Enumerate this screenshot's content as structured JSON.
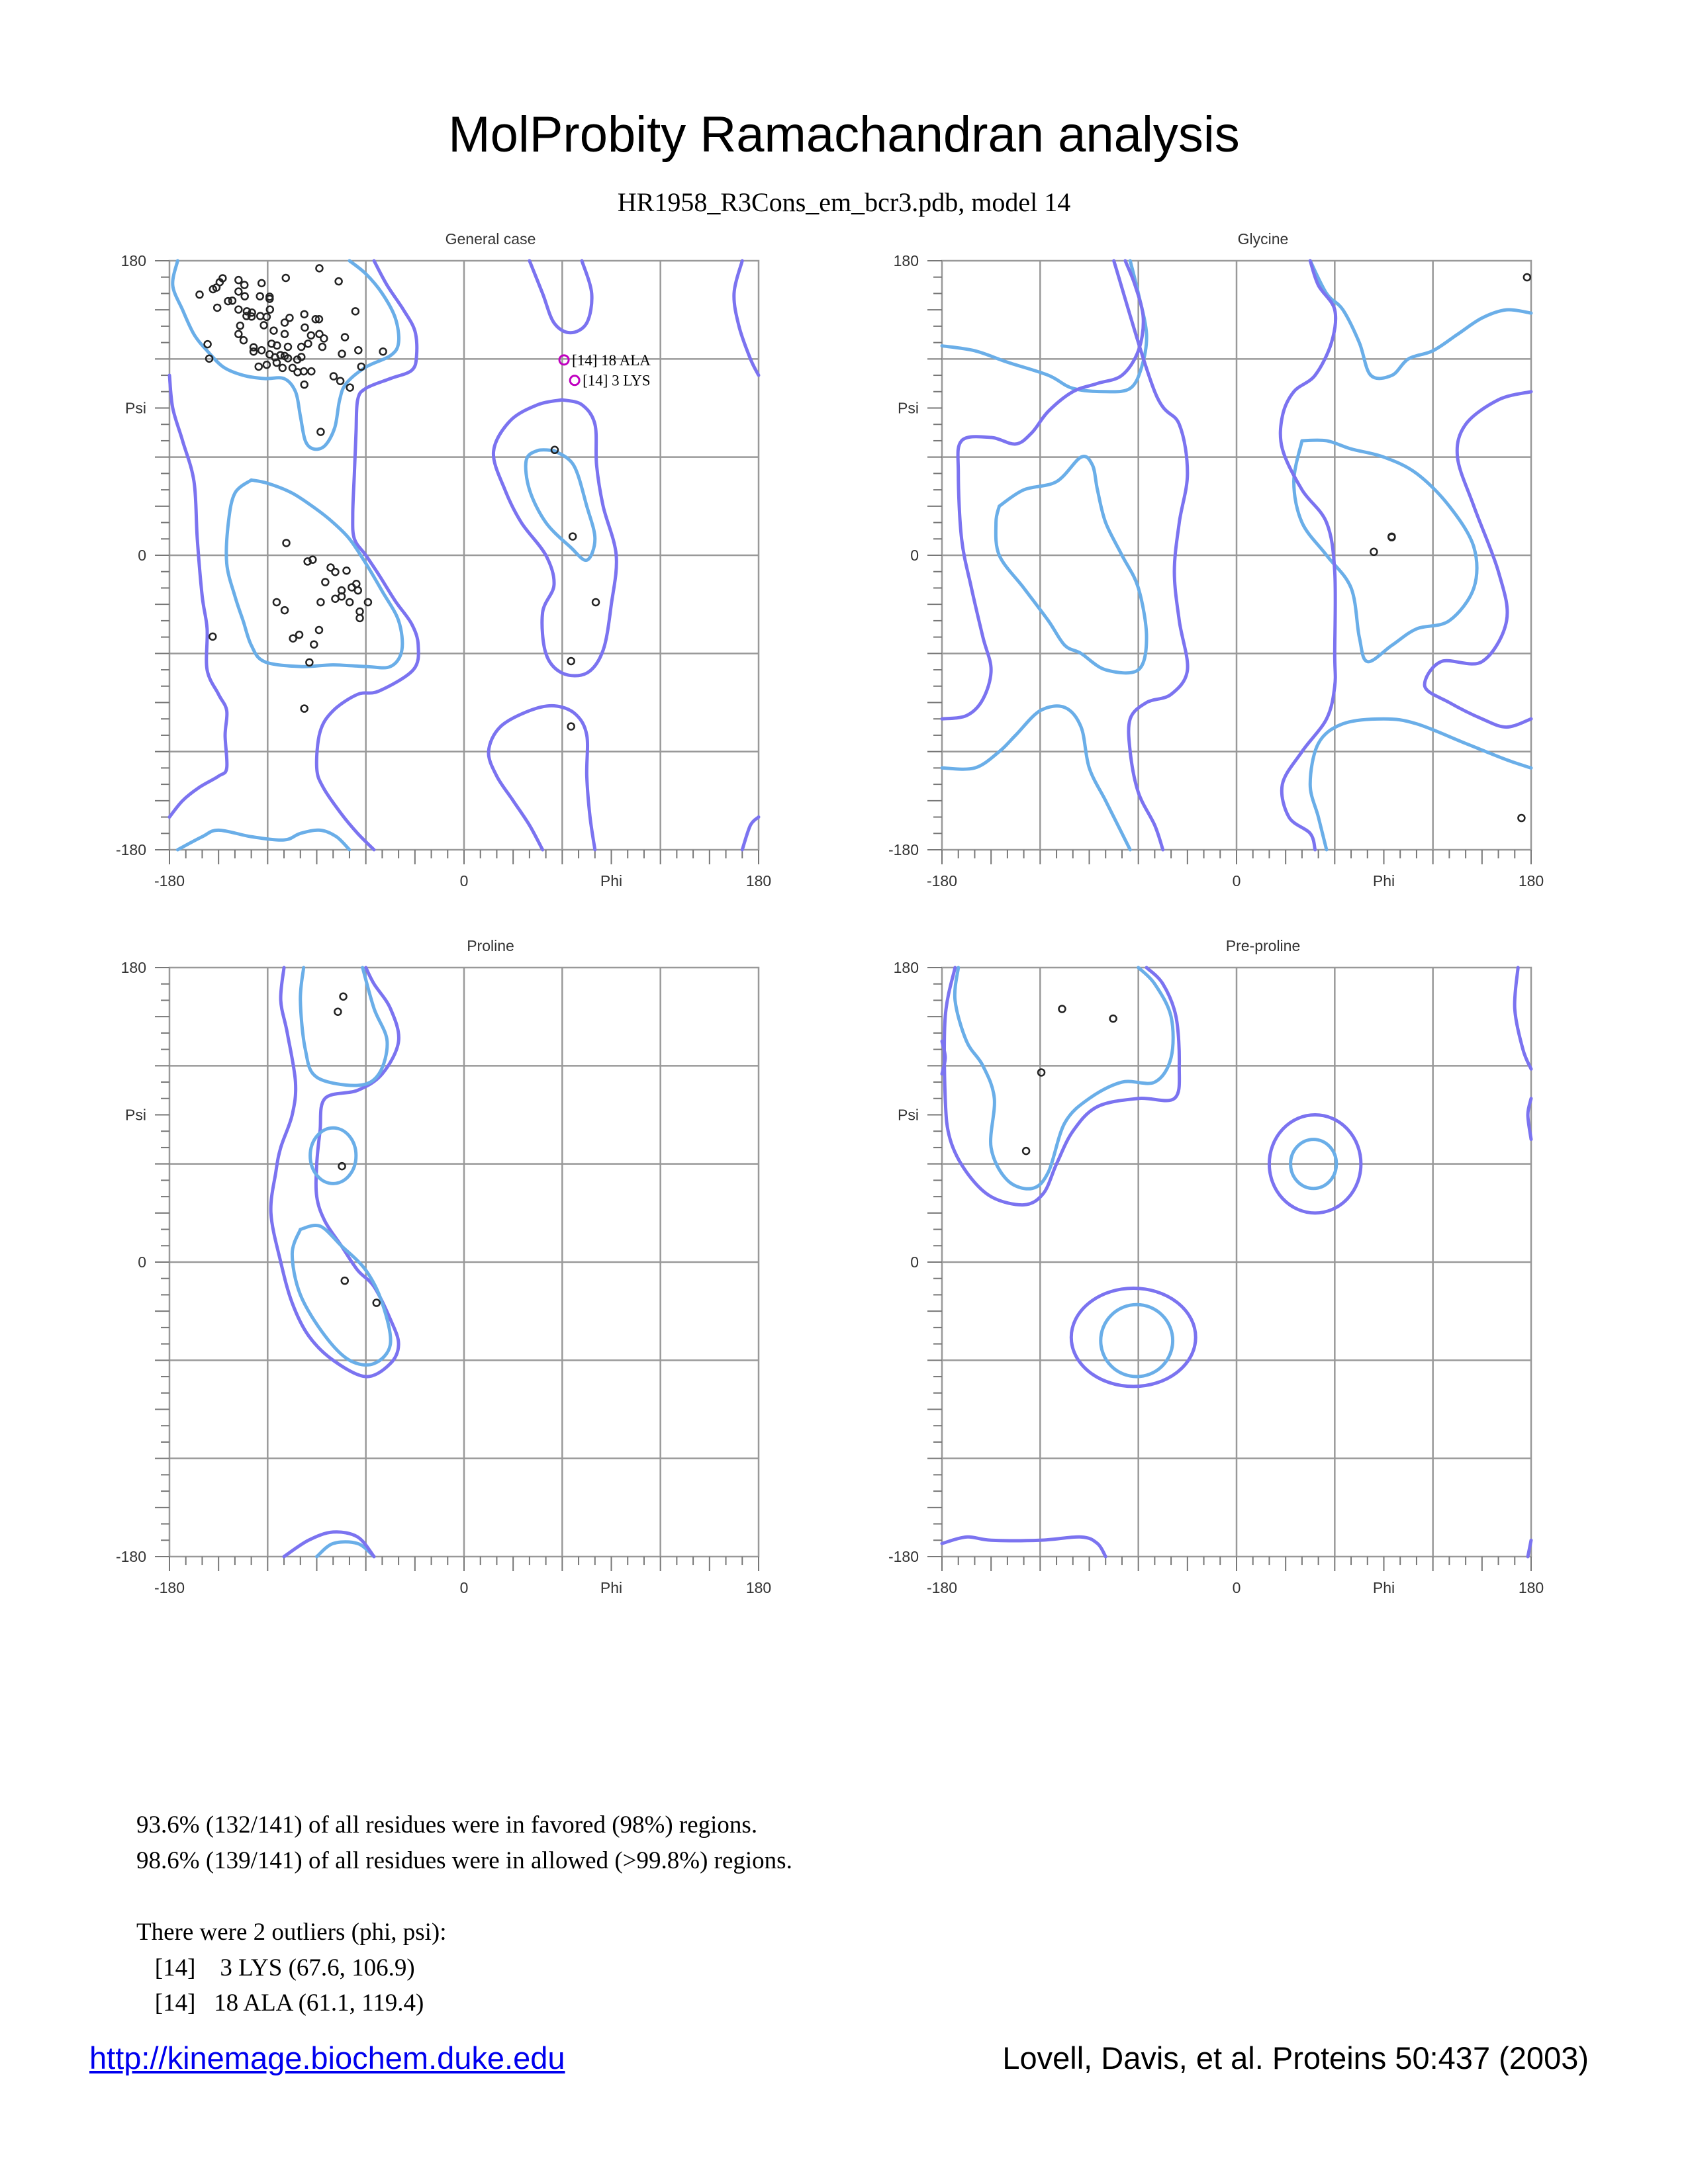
{
  "header": {
    "title": "MolProbity Ramachandran analysis",
    "subtitle": "HR1958_R3Cons_em_bcr3.pdb, model 14"
  },
  "colors": {
    "favored_contour": "#6aaee8",
    "allowed_contour": "#7b73f0",
    "grid": "#999999",
    "point": "#222222",
    "outlier": "#c000c0"
  },
  "chart_data": [
    {
      "type": "scatter",
      "title": "General case",
      "xlabel": "Phi",
      "ylabel": "Psi",
      "xlim": [
        -180,
        180
      ],
      "ylim": [
        -180,
        180
      ],
      "xticks": [
        "-180",
        "0",
        "180"
      ],
      "yticks": [
        "180",
        "0",
        "-180"
      ],
      "grid": true,
      "points": [
        [
          -161.6,
          159.3
        ],
        [
          -153.4,
          162.6
        ],
        [
          -151.3,
          163.6
        ],
        [
          -149.3,
          166.9
        ],
        [
          -147.5,
          169.3
        ],
        [
          -137.8,
          168.2
        ],
        [
          -134.2,
          165.2
        ],
        [
          -123.7,
          166.3
        ],
        [
          -108.9,
          169.5
        ],
        [
          -88.4,
          175.4
        ],
        [
          -76.6,
          167.4
        ],
        [
          -144.2,
          155.3
        ],
        [
          -141.6,
          155.6
        ],
        [
          -150.8,
          151.3
        ],
        [
          -137.8,
          161.2
        ],
        [
          -134.0,
          158.3
        ],
        [
          -124.7,
          158.3
        ],
        [
          -118.8,
          158.0
        ],
        [
          -118.8,
          156.7
        ],
        [
          -137.8,
          150.2
        ],
        [
          -132.7,
          149.1
        ],
        [
          -129.6,
          148.3
        ],
        [
          -132.9,
          146.2
        ],
        [
          -129.8,
          145.9
        ],
        [
          -124.5,
          146.2
        ],
        [
          -120.6,
          145.7
        ],
        [
          -118.6,
          150.2
        ],
        [
          -136.8,
          140.3
        ],
        [
          -122.3,
          140.6
        ],
        [
          -116.3,
          137.3
        ],
        [
          -109.6,
          142.2
        ],
        [
          -106.6,
          145.1
        ],
        [
          -97.6,
          147.3
        ],
        [
          -90.7,
          144.3
        ],
        [
          -88.6,
          144.3
        ],
        [
          -97.3,
          139.2
        ],
        [
          -109.6,
          135.2
        ],
        [
          -137.8,
          135.2
        ],
        [
          -134.7,
          131.4
        ],
        [
          -156.7,
          129.0
        ],
        [
          -155.7,
          120.2
        ],
        [
          -128.6,
          127.1
        ],
        [
          -128.6,
          124.5
        ],
        [
          -123.7,
          125.3
        ],
        [
          -117.6,
          129.3
        ],
        [
          -114.3,
          128.2
        ],
        [
          -107.6,
          127.4
        ],
        [
          -99.4,
          127.4
        ],
        [
          -95.3,
          129.3
        ],
        [
          -93.5,
          134.4
        ],
        [
          -88.4,
          135.2
        ],
        [
          -85.6,
          132.5
        ],
        [
          -86.6,
          127.4
        ],
        [
          -72.8,
          133.3
        ],
        [
          -64.6,
          125.3
        ],
        [
          -74.6,
          123.1
        ],
        [
          -49.5,
          124.5
        ],
        [
          -66.4,
          149.1
        ],
        [
          -118.8,
          122.8
        ],
        [
          -115.5,
          121.0
        ],
        [
          -112.2,
          122.3
        ],
        [
          -109.6,
          121.8
        ],
        [
          -107.6,
          120.4
        ],
        [
          -101.9,
          119.6
        ],
        [
          -99.4,
          121.2
        ],
        [
          -114.5,
          117.7
        ],
        [
          -110.9,
          114.5
        ],
        [
          -104.8,
          114.5
        ],
        [
          -125.5,
          115.3
        ],
        [
          -120.6,
          116.4
        ],
        [
          -101.7,
          111.9
        ],
        [
          -97.9,
          112.4
        ],
        [
          -93.3,
          112.4
        ],
        [
          -97.6,
          104.3
        ],
        [
          -79.7,
          109.4
        ],
        [
          -75.6,
          106.5
        ],
        [
          -69.7,
          102.5
        ],
        [
          -62.8,
          115.3
        ],
        [
          -87.6,
          75.4
        ],
        [
          -108.6,
          7.5
        ],
        [
          -95.6,
          -3.8
        ],
        [
          -92.5,
          -2.7
        ],
        [
          -81.5,
          -7.5
        ],
        [
          -78.7,
          -10.2
        ],
        [
          -71.8,
          -9.4
        ],
        [
          -84.8,
          -16.4
        ],
        [
          -74.8,
          -21.5
        ],
        [
          -68.6,
          -19.6
        ],
        [
          -65.8,
          -17.5
        ],
        [
          -64.8,
          -21.5
        ],
        [
          -78.7,
          -26.6
        ],
        [
          -74.8,
          -25.2
        ],
        [
          -69.9,
          -28.7
        ],
        [
          -58.7,
          -28.7
        ],
        [
          -87.6,
          -28.7
        ],
        [
          -114.5,
          -28.7
        ],
        [
          -109.6,
          -33.6
        ],
        [
          -63.7,
          -34.4
        ],
        [
          -63.7,
          -38.4
        ],
        [
          -153.6,
          -49.7
        ],
        [
          -88.6,
          -45.7
        ],
        [
          -104.5,
          -50.8
        ],
        [
          -100.7,
          -48.6
        ],
        [
          -91.7,
          -54.5
        ],
        [
          -94.5,
          -65.5
        ],
        [
          -97.6,
          -93.7
        ],
        [
          55.4,
          64.4
        ],
        [
          66.4,
          11.5
        ],
        [
          80.5,
          -28.7
        ],
        [
          65.4,
          -64.7
        ],
        [
          65.4,
          -104.6
        ]
      ],
      "outliers": [
        {
          "label": "[14]    18 ALA",
          "phi": 61.1,
          "psi": 119.4
        },
        {
          "label": "[14]    3 LYS",
          "phi": 67.6,
          "psi": 106.9
        }
      ]
    },
    {
      "type": "scatter",
      "title": "Glycine",
      "xlabel": "Phi",
      "ylabel": "Psi",
      "xlim": [
        -180,
        180
      ],
      "ylim": [
        -180,
        180
      ],
      "xticks": [
        "-180",
        "0",
        "180"
      ],
      "yticks": [
        "180",
        "0",
        "-180"
      ],
      "grid": true,
      "points": [
        [
          177.5,
          169.9
        ],
        [
          83.9,
          2.1
        ],
        [
          94.8,
          11.4
        ],
        [
          94.8,
          11.0
        ],
        [
          174.1,
          -160.6
        ]
      ],
      "outliers": []
    },
    {
      "type": "scatter",
      "title": "Proline",
      "xlabel": "Phi",
      "ylabel": "Psi",
      "xlim": [
        -180,
        180
      ],
      "ylim": [
        -180,
        180
      ],
      "xticks": [
        "-180",
        "0",
        "180"
      ],
      "yticks": [
        "180",
        "0",
        "-180"
      ],
      "grid": true,
      "points": [
        [
          -73.8,
          162.3
        ],
        [
          -77.1,
          153.0
        ],
        [
          -74.6,
          58.6
        ],
        [
          -72.9,
          -11.4
        ],
        [
          -53.5,
          -24.9
        ]
      ],
      "outliers": []
    },
    {
      "type": "scatter",
      "title": "Pre-proline",
      "xlabel": "Phi",
      "ylabel": "Psi",
      "xlim": [
        -180,
        180
      ],
      "ylim": [
        -180,
        180
      ],
      "xticks": [
        "-180",
        "0",
        "180"
      ],
      "yticks": [
        "180",
        "0",
        "-180"
      ],
      "grid": true,
      "points": [
        [
          -106.6,
          154.7
        ],
        [
          -75.4,
          148.8
        ],
        [
          -119.3,
          115.9
        ],
        [
          -128.6,
          67.9
        ]
      ],
      "outliers": []
    }
  ],
  "summary": {
    "favored": "93.6% (132/141) of all residues were in favored (98%) regions.",
    "allowed": "98.6% (139/141) of all residues were in allowed (>99.8%) regions.",
    "outliers_heading": "There were 2 outliers (phi, psi):",
    "outlier_lines": [
      "   [14]    3 LYS (67.6, 106.9)",
      "   [14]   18 ALA (61.1, 119.4)"
    ]
  },
  "footer": {
    "link": "http://kinemage.biochem.duke.edu",
    "citation": "Lovell, Davis, et al. Proteins 50:437 (2003)"
  }
}
